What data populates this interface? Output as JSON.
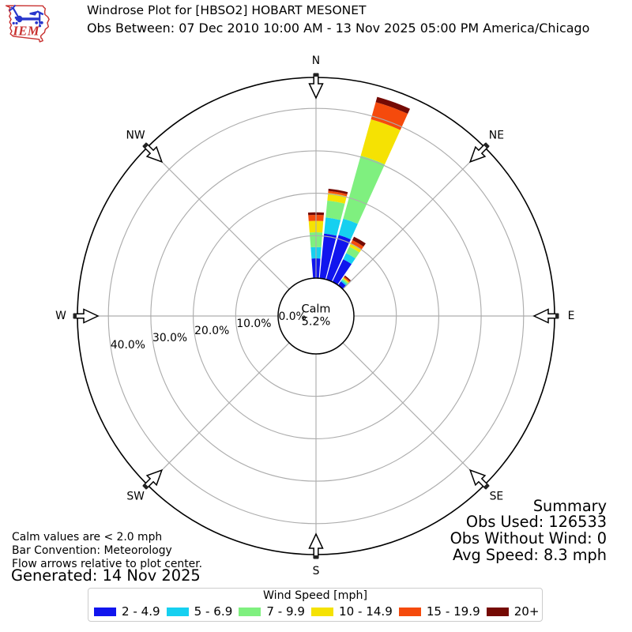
{
  "header": {
    "logo_text": "IEM",
    "title": "Windrose Plot for [HBSO2] HOBART MESONET",
    "subtitle": "Obs Between: 07 Dec 2010 10:00 AM - 13 Nov 2025 05:00 PM America/Chicago"
  },
  "notes": {
    "calm_note": "Calm values are < 2.0 mph",
    "convention_note": "Bar Convention: Meteorology",
    "arrows_note": "Flow arrows relative to plot center.",
    "generated": "Generated: 14 Nov 2025"
  },
  "summary": {
    "title": "Summary",
    "obs_used": "Obs Used: 126533",
    "obs_without_wind": "Obs Without Wind: 0",
    "avg_speed": "Avg Speed: 8.3 mph"
  },
  "chart_data": {
    "type": "windrose",
    "title": "Windrose Plot for [HBSO2] HOBART MESONET",
    "legend_title": "Wind Speed [mph]",
    "legend_position": "bottom",
    "calm": {
      "label": "Calm",
      "pct": 5.2,
      "display": "5.2%"
    },
    "compass_labels": [
      {
        "label": "N",
        "deg": 0
      },
      {
        "label": "NE",
        "deg": 45
      },
      {
        "label": "E",
        "deg": 90
      },
      {
        "label": "SE",
        "deg": 135
      },
      {
        "label": "S",
        "deg": 180
      },
      {
        "label": "SW",
        "deg": 225
      },
      {
        "label": "W",
        "deg": 270
      },
      {
        "label": "NW",
        "deg": 315
      }
    ],
    "rings_pct": [
      0,
      10,
      20,
      30,
      40
    ],
    "ring_labels": [
      "0.0%",
      "10.0%",
      "20.0%",
      "30.0%",
      "40.0%"
    ],
    "r_axis_max_pct": 47.3,
    "speed_bins": [
      {
        "label": "2 - 4.9",
        "color": "#1115ee"
      },
      {
        "label": "5 - 6.9",
        "color": "#16d0f0"
      },
      {
        "label": "7 - 9.9",
        "color": "#7ff07f"
      },
      {
        "label": "10 - 14.9",
        "color": "#f5e203"
      },
      {
        "label": "15 - 19.9",
        "color": "#f54a0c"
      },
      {
        "label": "20+",
        "color": "#750a04"
      }
    ],
    "sector_width_deg": 8.8,
    "bars": [
      {
        "dir_deg": 0,
        "freq_pct": [
          4.65,
          2.65,
          3.5,
          2.7,
          1.4,
          0.6
        ]
      },
      {
        "dir_deg": 10,
        "freq_pct": [
          10.6,
          3.8,
          4.0,
          1.8,
          0.5,
          0.5
        ]
      },
      {
        "dir_deg": 20,
        "freq_pct": [
          10.9,
          4.0,
          15.4,
          8.9,
          4.2,
          1.3
        ]
      },
      {
        "dir_deg": 30,
        "freq_pct": [
          5.9,
          1.6,
          1.7,
          0.8,
          0.9,
          0.9
        ]
      },
      {
        "dir_deg": 40,
        "freq_pct": [
          1.1,
          0.4,
          0.4,
          0.3,
          0.3,
          0.3
        ]
      }
    ]
  },
  "colors": {
    "grid": "#adadad",
    "axis": "#000000",
    "logo_red": "#cc2222",
    "logo_blue": "#2233cc"
  }
}
